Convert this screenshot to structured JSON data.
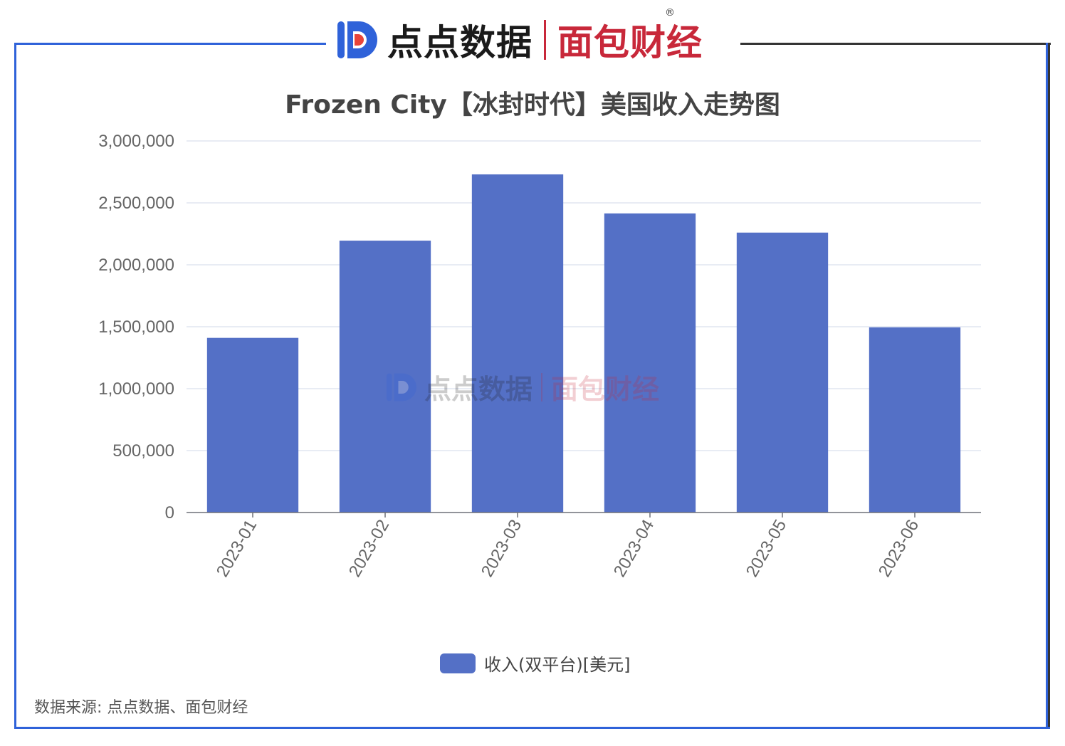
{
  "brand": {
    "name1": "点点数据",
    "name2": "面包财经",
    "reg_mark": "®",
    "logo_color": "#2f62d9",
    "accent_color": "#c8283a"
  },
  "source_text": "数据来源: 点点数据、面包财经",
  "chart_data": {
    "type": "bar",
    "title": "Frozen City【冰封时代】美国收入走势图",
    "categories": [
      "2023-01",
      "2023-02",
      "2023-03",
      "2023-04",
      "2023-05",
      "2023-06"
    ],
    "series": [
      {
        "name": "收入(双平台)[美元]",
        "color": "#5470c6",
        "values": [
          1410000,
          2195000,
          2730000,
          2415000,
          2260000,
          1495000
        ]
      }
    ],
    "ylim": [
      0,
      3000000
    ],
    "yticks": [
      0,
      500000,
      1000000,
      1500000,
      2000000,
      2500000,
      3000000
    ],
    "ytick_labels": [
      "0",
      "500,000",
      "1,000,000",
      "1,500,000",
      "2,000,000",
      "2,500,000",
      "3,000,000"
    ],
    "grid": true,
    "legend_position": "bottom-center"
  }
}
